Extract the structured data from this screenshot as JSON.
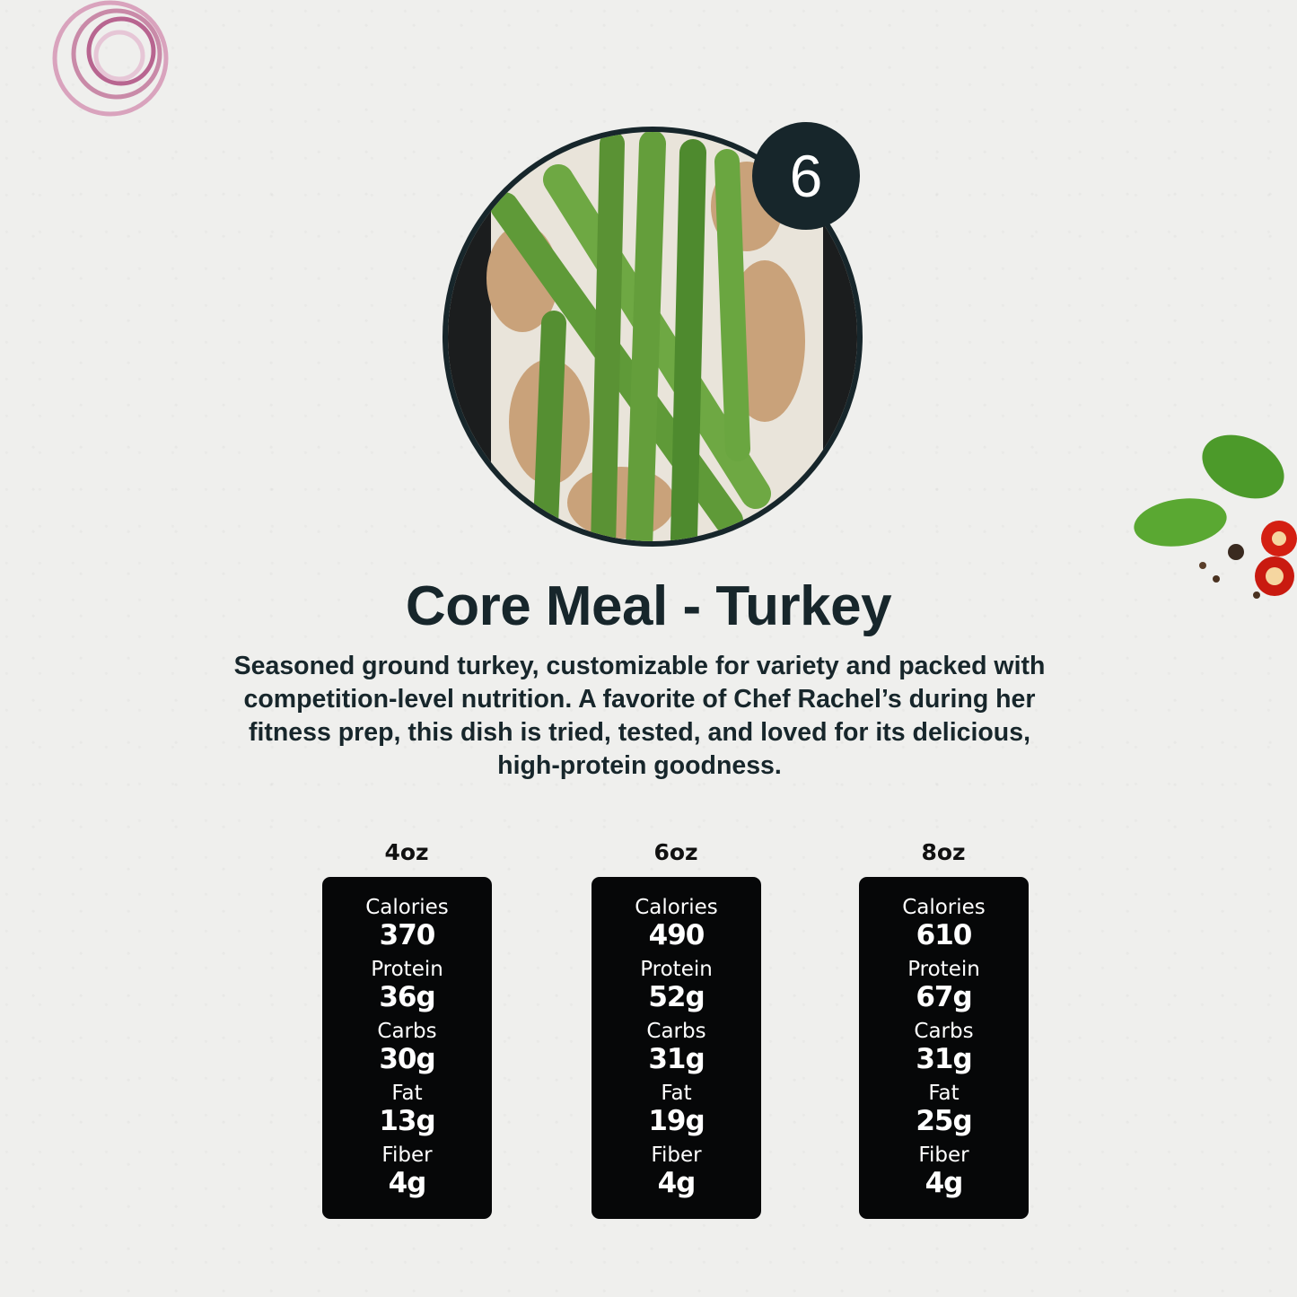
{
  "badge_number": "6",
  "title": "Core Meal - Turkey",
  "description_lines": [
    "Seasoned ground turkey, customizable for variety and packed with",
    "competition-level nutrition. A favorite of Chef Rachel’s during her",
    "fitness prep, this dish is tried, tested, and loved for its delicious,",
    "high-protein goodness."
  ],
  "colors": {
    "text": "#17262b",
    "card": "#060708",
    "badge": "#17262b"
  },
  "nutrition": [
    {
      "size": "4oz",
      "calories": "370",
      "protein": "36g",
      "carbs": "30g",
      "fat": "13g",
      "fiber": "4g"
    },
    {
      "size": "6oz",
      "calories": "490",
      "protein": "52g",
      "carbs": "31g",
      "fat": "19g",
      "fiber": "4g"
    },
    {
      "size": "8oz",
      "calories": "610",
      "protein": "67g",
      "carbs": "31g",
      "fat": "25g",
      "fiber": "4g"
    }
  ],
  "labels": {
    "calories": "Calories",
    "protein": "Protein",
    "carbs": "Carbs",
    "fat": "Fat",
    "fiber": "Fiber"
  }
}
